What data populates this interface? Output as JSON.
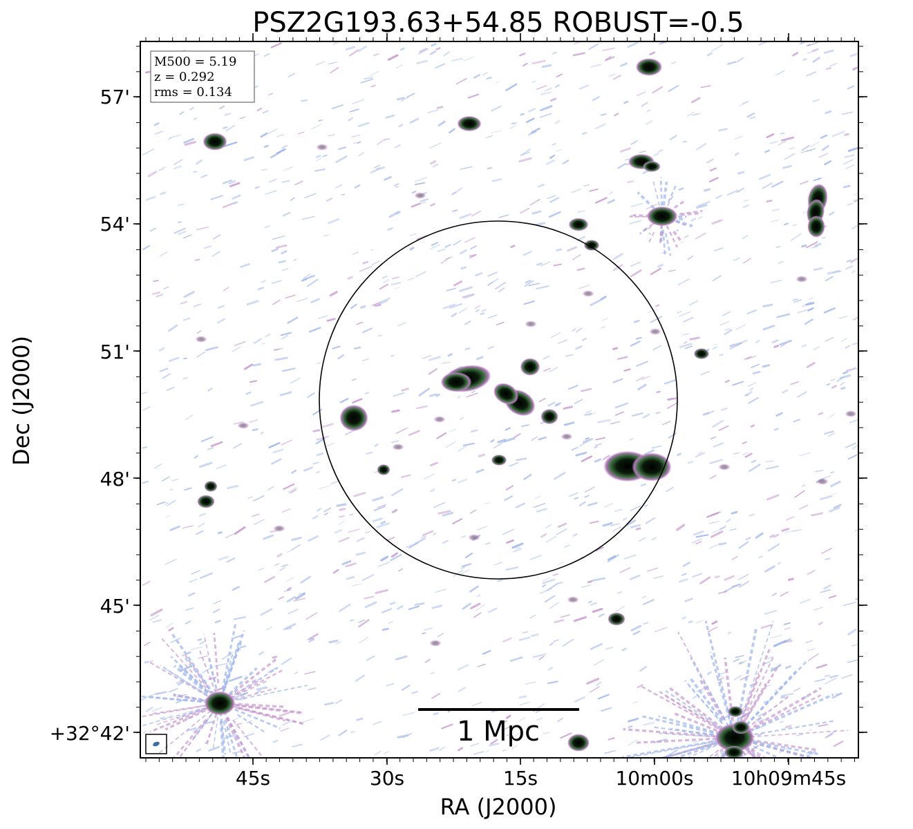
{
  "title": "PSZ2G193.63+54.85 ROBUST=-0.5",
  "xlabel": "RA (J2000)",
  "ylabel": "Dec (J2000)",
  "xticks": [
    "45s",
    "30s",
    "15s",
    "10m00s",
    "10h09m45s"
  ],
  "yticks": [
    "57'",
    "54'",
    "51'",
    "48'",
    "45'",
    "+32°42'"
  ],
  "info": {
    "m500": "M500 = 5.19",
    "z": "z = 0.292",
    "rms": "rms = 0.134"
  },
  "scalebar_label": "1 Mpc",
  "colors": {
    "noise_light": "#b8c8ec",
    "noise_blue": "#9fb6ea",
    "noise_purple": "#c89ad0",
    "source_mid": "#3b6d3e",
    "source_core": "#000000"
  }
}
